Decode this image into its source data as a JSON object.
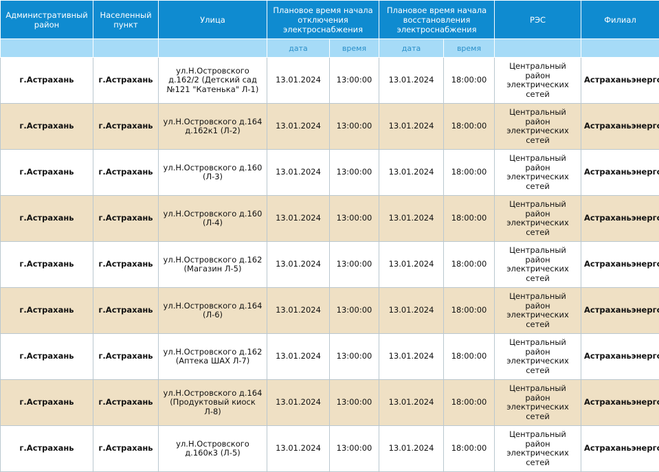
{
  "headers": {
    "admin_district": "Административный район",
    "locality": "Населенный пункт",
    "street": "Улица",
    "planned_off": "Плановое время начала отключения электроснабжения",
    "planned_restore": "Плановое время начала восстановления электроснабжения",
    "res": "РЭС",
    "branch": "Филиал",
    "sub_date": "дата",
    "sub_time": "время"
  },
  "rows": [
    {
      "district": "г.Астрахань",
      "locality": "г.Астрахань",
      "street": "ул.Н.Островского д.162/2 (Детский сад №121 \"Катенька\" Л-1)",
      "off_date": "13.01.2024",
      "off_time": "13:00:00",
      "on_date": "13.01.2024",
      "on_time": "18:00:00",
      "res": "Центральный район электрических сетей",
      "branch": "Астраханьэнерго"
    },
    {
      "district": "г.Астрахань",
      "locality": "г.Астрахань",
      "street": "ул.Н.Островского д.164 д.162к1 (Л-2)",
      "off_date": "13.01.2024",
      "off_time": "13:00:00",
      "on_date": "13.01.2024",
      "on_time": "18:00:00",
      "res": "Центральный район электрических сетей",
      "branch": "Астраханьэнерго"
    },
    {
      "district": "г.Астрахань",
      "locality": "г.Астрахань",
      "street": "ул.Н.Островского д.160 (Л-3)",
      "off_date": "13.01.2024",
      "off_time": "13:00:00",
      "on_date": "13.01.2024",
      "on_time": "18:00:00",
      "res": "Центральный район электрических сетей",
      "branch": "Астраханьэнерго"
    },
    {
      "district": "г.Астрахань",
      "locality": "г.Астрахань",
      "street": "ул.Н.Островского д.160 (Л-4)",
      "off_date": "13.01.2024",
      "off_time": "13:00:00",
      "on_date": "13.01.2024",
      "on_time": "18:00:00",
      "res": "Центральный район электрических сетей",
      "branch": "Астраханьэнерго"
    },
    {
      "district": "г.Астрахань",
      "locality": "г.Астрахань",
      "street": "ул.Н.Островского д.162 (Магазин Л-5)",
      "off_date": "13.01.2024",
      "off_time": "13:00:00",
      "on_date": "13.01.2024",
      "on_time": "18:00:00",
      "res": "Центральный район электрических сетей",
      "branch": "Астраханьэнерго"
    },
    {
      "district": "г.Астрахань",
      "locality": "г.Астрахань",
      "street": "ул.Н.Островского д.164 (Л-6)",
      "off_date": "13.01.2024",
      "off_time": "13:00:00",
      "on_date": "13.01.2024",
      "on_time": "18:00:00",
      "res": "Центральный район электрических сетей",
      "branch": "Астраханьэнерго"
    },
    {
      "district": "г.Астрахань",
      "locality": "г.Астрахань",
      "street": "ул.Н.Островского д.162 (Аптека ШАХ Л-7)",
      "off_date": "13.01.2024",
      "off_time": "13:00:00",
      "on_date": "13.01.2024",
      "on_time": "18:00:00",
      "res": "Центральный район электрических сетей",
      "branch": "Астраханьэнерго"
    },
    {
      "district": "г.Астрахань",
      "locality": "г.Астрахань",
      "street": "ул.Н.Островского д.164 (Продуктовый киоск Л-8)",
      "off_date": "13.01.2024",
      "off_time": "13:00:00",
      "on_date": "13.01.2024",
      "on_time": "18:00:00",
      "res": "Центральный район электрических сетей",
      "branch": "Астраханьэнерго"
    },
    {
      "district": "г.Астрахань",
      "locality": "г.Астрахань",
      "street": "ул.Н.Островского д.160к3 (Л-5)",
      "off_date": "13.01.2024",
      "off_time": "13:00:00",
      "on_date": "13.01.2024",
      "on_time": "18:00:00",
      "res": "Центральный район электрических сетей",
      "branch": "Астраханьэнерго"
    }
  ]
}
